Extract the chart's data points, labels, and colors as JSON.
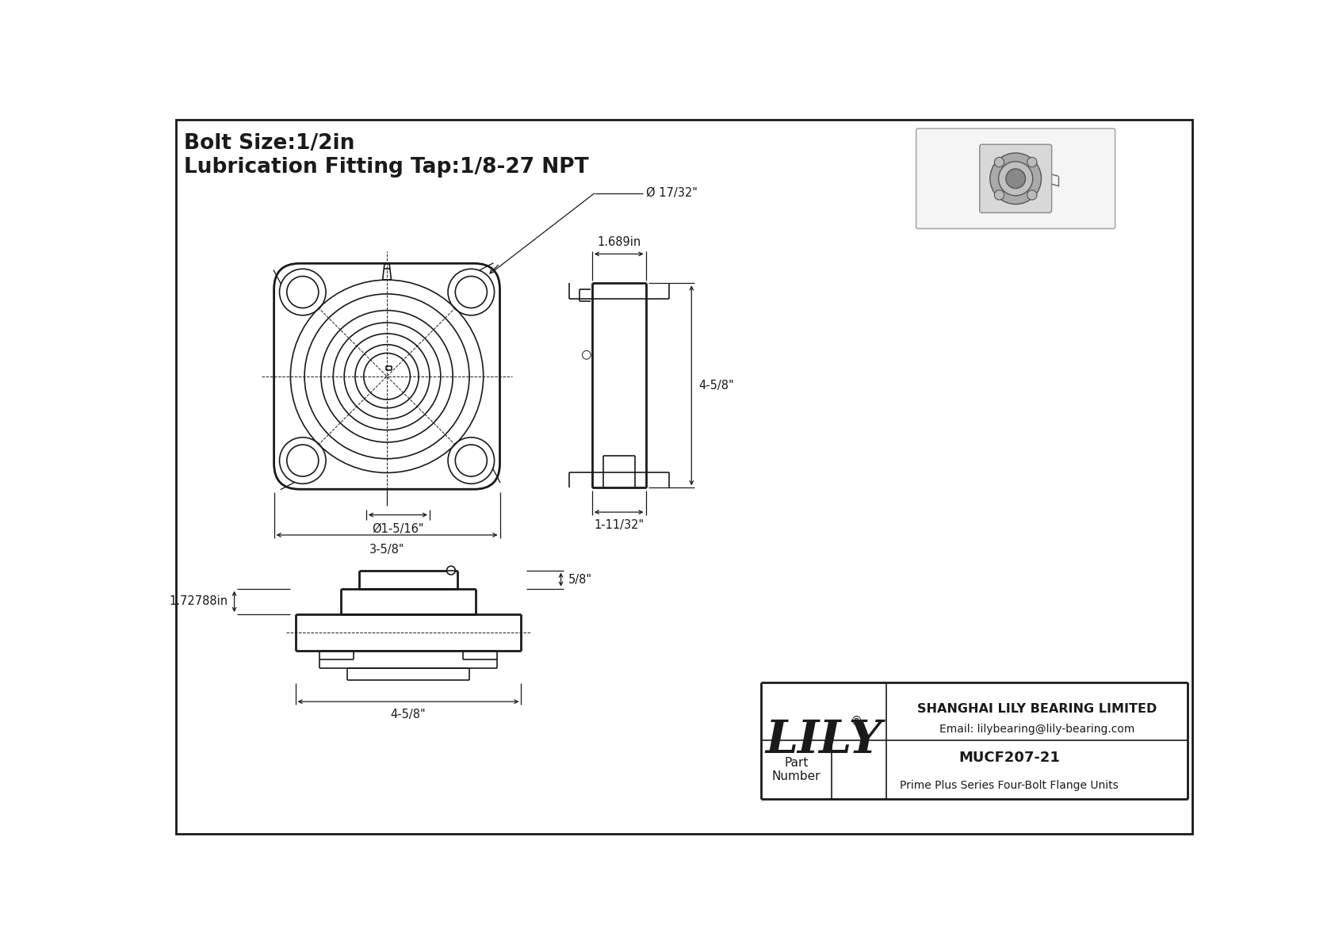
{
  "bg_color": "#ffffff",
  "line_color": "#1a1a1a",
  "title_line1": "Bolt Size:1/2in",
  "title_line2": "Lubrication Fitting Tap:1/8-27 NPT",
  "title_fontsize": 19,
  "company_name": "SHANGHAI LILY BEARING LIMITED",
  "company_email": "Email: lilybearing@lily-bearing.com",
  "part_number_label": "Part\nNumber",
  "part_number_value": "MUCF207-21",
  "part_description": "Prime Plus Series Four-Bolt Flange Units",
  "dim_17_32": "Ø 17/32\"",
  "dim_1_5_16": "Ø1-5/16\"",
  "dim_3_5_8": "3-5/8\"",
  "dim_1_689": "1.689in",
  "dim_4_5_8_side": "4-5/8\"",
  "dim_1_11_32": "1-11/32\"",
  "dim_1_72788": "1.72788in",
  "dim_5_8": "5/8\"",
  "dim_4_5_8_bottom": "4-5/8\""
}
